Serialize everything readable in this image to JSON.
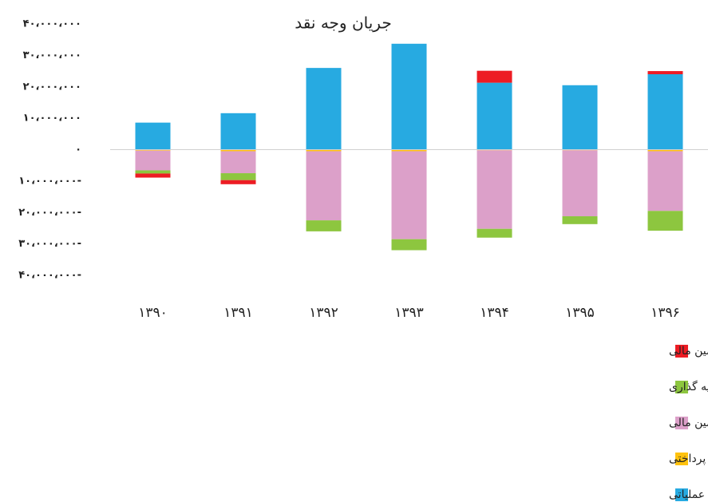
{
  "chart_data": {
    "type": "bar",
    "stacked": true,
    "title": "جریان وجه نقد",
    "categories": [
      "۱۳۹۰",
      "۱۳۹۱",
      "۱۳۹۲",
      "۱۳۹۳",
      "۱۳۹۴",
      "۱۳۹۵",
      "۱۳۹۶"
    ],
    "series": [
      {
        "name": "جریان خالص ورود (خروج) وجه نقد ناشی از فعالیت های تامین مالی",
        "color": "#ed1c24",
        "values": [
          -1300000,
          -1300000,
          0,
          0,
          3800000,
          0,
          1000000
        ]
      },
      {
        "name": "جریان خالص ورود (خروج)وجه نقد ناشی از فعالیتهای سرمایه گذاری",
        "color": "#8dc63f",
        "values": [
          -1000000,
          -2200000,
          -3500000,
          -3500000,
          -2800000,
          -2500000,
          -6300000
        ]
      },
      {
        "name": "جریان خالص ورود (خروج)وجه نقد ناشی از بازده سرمایه گذاریها و سود پرداختنی بابت تامین مالی",
        "color": "#dca0c9",
        "values": [
          -6300000,
          -7000000,
          -22000000,
          -28000000,
          -25000000,
          -21000000,
          -19000000
        ]
      },
      {
        "name": "مالیات بر درآمد پرداختی",
        "color": "#ffc20e",
        "values": [
          -300000,
          -500000,
          -500000,
          -500000,
          -200000,
          -200000,
          -500000
        ]
      },
      {
        "name": "جریان خالص ورود (خروج) وجه نقد ناشی از فعالیت های عملیاتی",
        "color": "#27aae1",
        "values": [
          8600000,
          11600000,
          26000000,
          33700000,
          21300000,
          20500000,
          24000000
        ]
      }
    ],
    "ylim": [
      -40000000,
      40000000
    ],
    "yticks": [
      {
        "value": 40000000,
        "label": "۴۰،۰۰۰،۰۰۰"
      },
      {
        "value": 30000000,
        "label": "۳۰،۰۰۰،۰۰۰"
      },
      {
        "value": 20000000,
        "label": "۲۰،۰۰۰،۰۰۰"
      },
      {
        "value": 10000000,
        "label": "۱۰،۰۰۰،۰۰۰"
      },
      {
        "value": 0,
        "label": "۰"
      },
      {
        "value": -10000000,
        "label": "۱۰،۰۰۰،۰۰۰-"
      },
      {
        "value": -20000000,
        "label": "۲۰،۰۰۰،۰۰۰-"
      },
      {
        "value": -30000000,
        "label": "۳۰،۰۰۰،۰۰۰-"
      },
      {
        "value": -40000000,
        "label": "۴۰،۰۰۰،۰۰۰-"
      }
    ],
    "legend": "bottom"
  }
}
